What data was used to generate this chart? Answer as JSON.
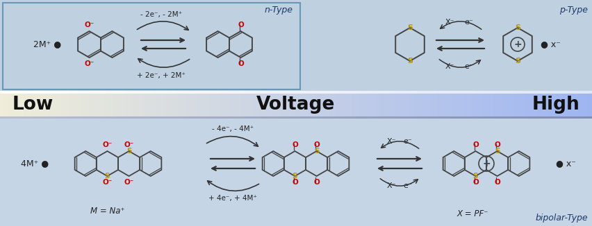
{
  "low_text": "Low",
  "voltage_text": "Voltage",
  "high_text": "High",
  "n_type_label": "n-Type",
  "p_type_label": "p-Type",
  "bipolar_label": "bipolar-Type",
  "label_2mp": "2M⁺ ●",
  "label_4mp": "4M⁺ ●",
  "label_mna": "M = Na⁺",
  "label_xpf": "X = PF⁻",
  "label_xr_p": "● x⁻",
  "label_xr_b": "● x⁻",
  "reaction_n_top": "- 2e⁻, - 2M⁺",
  "reaction_n_bot": "+ 2e⁻, + 2M⁺",
  "reaction_b_top": "- 4e⁻, - 4M⁺",
  "reaction_b_bot": "+ 4e⁻, + 4M⁺",
  "X_label": "X⁻",
  "e_label": "e⁻",
  "o_minus_color": "#cc0000",
  "o_color": "#cc0000",
  "s_color": "#b8960a",
  "dark_text": "#222222",
  "label_color": "#1a3a6a",
  "frame_color": "#6898b8",
  "bg_top": "#c0d4e4",
  "bg_bottom": "#c8d8e8",
  "vol_left_color": "#e8e8d8",
  "vol_right_color": "#4878a8"
}
